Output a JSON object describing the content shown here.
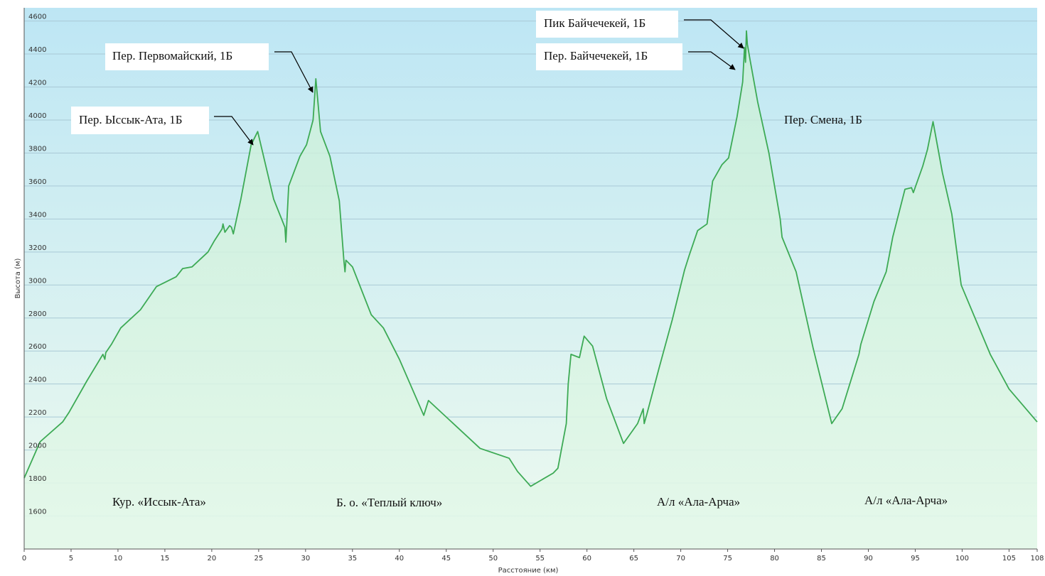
{
  "chart_data": {
    "type": "area",
    "title": "",
    "xlabel": "Расстояние (км)",
    "ylabel": "Высота (м)",
    "xlim": [
      0,
      108
    ],
    "ylim": [
      1400,
      4680
    ],
    "x_ticks": [
      0,
      5,
      10,
      15,
      20,
      25,
      30,
      35,
      40,
      45,
      50,
      55,
      60,
      65,
      70,
      75,
      80,
      85,
      90,
      95,
      100,
      105,
      108
    ],
    "y_ticks": [
      1600,
      1800,
      2000,
      2200,
      2400,
      2600,
      2800,
      3000,
      3200,
      3400,
      3600,
      3800,
      4000,
      4200,
      4400,
      4600
    ],
    "grid": true,
    "line_color": "#3daa55",
    "fill_color": "#c9efd6",
    "background_top": "#bde6f4",
    "background_bottom": "#eefaef",
    "series": [
      {
        "x": [
          0,
          1.7,
          4.1,
          4.8,
          6.7,
          8.4,
          8.6,
          8.7,
          9.3,
          10.3,
          12.4,
          14.1,
          16.2,
          16.9,
          17.9,
          19.6,
          20.3,
          21.1,
          21.2,
          21.4,
          21.9,
          22.1,
          22.3,
          23.1,
          24.2,
          24.9,
          26.6,
          27.8,
          27.9,
          28.2,
          29.4,
          30.1,
          30.8,
          31.1,
          31.6,
          32.6,
          33.6,
          34.1,
          34.2,
          34.3,
          35.0,
          37.0,
          38.3,
          40.0,
          42.6,
          43.1,
          48.6,
          51.7,
          52.6,
          54.0,
          56.4,
          56.9,
          57.8,
          58.0,
          58.3,
          59.2,
          59.7,
          60.6,
          62.1,
          63.9,
          65.4,
          66.0,
          66.1,
          66.4,
          67.7,
          69.1,
          70.4,
          70.9,
          71.8,
          72.8,
          73.4,
          74.4,
          75.1,
          76.0,
          76.6,
          76.8,
          76.9,
          77.0,
          77.1,
          77.4,
          78.2,
          79.4,
          80.6,
          80.8,
          82.3,
          84.1,
          86.1,
          87.2,
          89.0,
          89.2,
          90.6,
          91.9,
          92.6,
          93.9,
          94.6,
          94.8,
          95.8,
          96.3,
          96.9,
          97.9,
          98.9,
          99.9,
          103.0,
          105.0,
          108.0
        ],
        "y": [
          1830,
          2050,
          2170,
          2230,
          2420,
          2580,
          2550,
          2590,
          2640,
          2740,
          2850,
          2990,
          3050,
          3100,
          3110,
          3200,
          3270,
          3340,
          3370,
          3320,
          3360,
          3350,
          3310,
          3520,
          3850,
          3930,
          3520,
          3350,
          3260,
          3600,
          3780,
          3850,
          4000,
          4250,
          3930,
          3780,
          3510,
          3140,
          3080,
          3150,
          3110,
          2820,
          2740,
          2550,
          2210,
          2300,
          2010,
          1950,
          1870,
          1780,
          1860,
          1890,
          2160,
          2400,
          2580,
          2560,
          2690,
          2630,
          2310,
          2040,
          2160,
          2250,
          2160,
          2220,
          2500,
          2790,
          3090,
          3180,
          3330,
          3370,
          3630,
          3730,
          3770,
          4020,
          4230,
          4440,
          4350,
          4540,
          4460,
          4360,
          4110,
          3800,
          3400,
          3290,
          3080,
          2620,
          2160,
          2250,
          2580,
          2640,
          2900,
          3080,
          3290,
          3580,
          3590,
          3560,
          3720,
          3820,
          3990,
          3680,
          3430,
          3000,
          2580,
          2370,
          2170
        ]
      }
    ],
    "annotations": [
      {
        "text": "Пер. Ысcык-Ата, 1Б",
        "arrow": true
      },
      {
        "text": "Пер. Первомайский, 1Б",
        "arrow": true
      },
      {
        "text": "Пик Байчечекей, 1Б",
        "arrow": true
      },
      {
        "text": "Пер. Байчечекей, 1Б",
        "arrow": true
      },
      {
        "text": "Пер. Смена, 1Б",
        "arrow": false
      },
      {
        "text": "Кур. «Иссык-Ата»",
        "arrow": false
      },
      {
        "text": "Б. о. «Теплый ключ»",
        "arrow": false
      },
      {
        "text": "А/л «Ала-Арча»",
        "arrow": false
      },
      {
        "text": "А/л «Ала-Арча»",
        "arrow": false
      }
    ]
  }
}
